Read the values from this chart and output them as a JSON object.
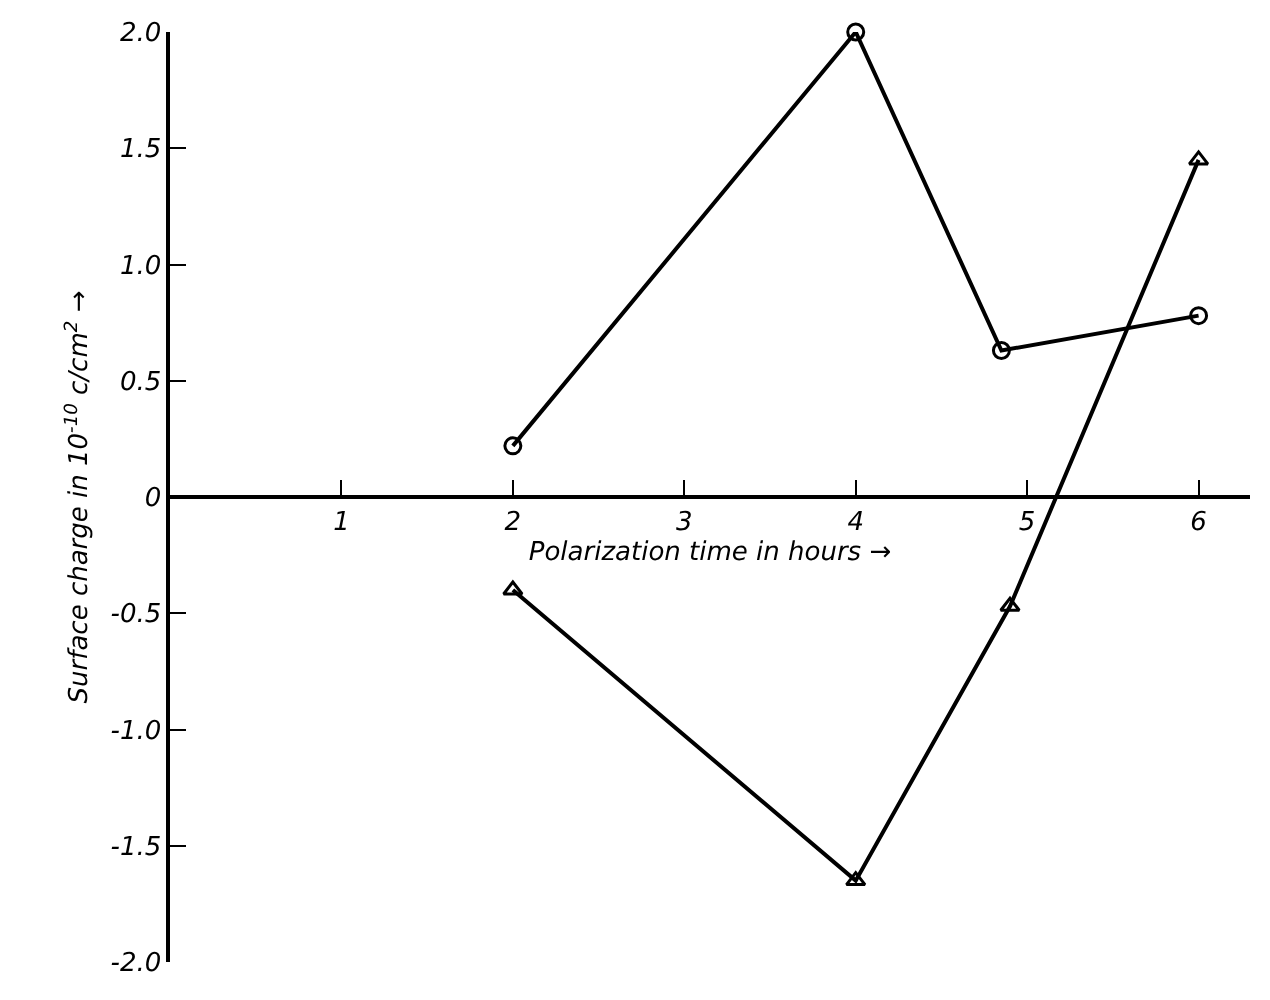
{
  "chart_data": {
    "type": "line",
    "xlabel": "Polarization time in hours →",
    "ylabel": "Surface charge in 10$^{-10}$ c/cm$^{2}$ →",
    "xlim": [
      0,
      6.3
    ],
    "xticks": [
      1,
      2,
      3,
      4,
      5,
      6
    ],
    "ylim": [
      -2,
      2
    ],
    "yticks": [
      {
        "value": 2,
        "label": "2.0"
      },
      1.5,
      {
        "value": 1,
        "label": "1.0"
      },
      0.5,
      0,
      -0.5,
      {
        "value": -1,
        "label": "-1.0"
      },
      -1.5,
      {
        "value": -2,
        "label": "-2.0"
      }
    ],
    "grid": false,
    "line_style": "solid",
    "series": [
      {
        "color": "#000000",
        "marker": "circle",
        "x": [
          2,
          4,
          4.85,
          6
        ],
        "values": [
          0.22,
          2.0,
          0.63,
          0.78
        ]
      },
      {
        "color": "#000000",
        "marker": "triangle",
        "x": [
          2,
          4,
          4.9,
          6
        ],
        "values": [
          -0.4,
          -1.65,
          -0.47,
          1.45
        ]
      }
    ]
  }
}
